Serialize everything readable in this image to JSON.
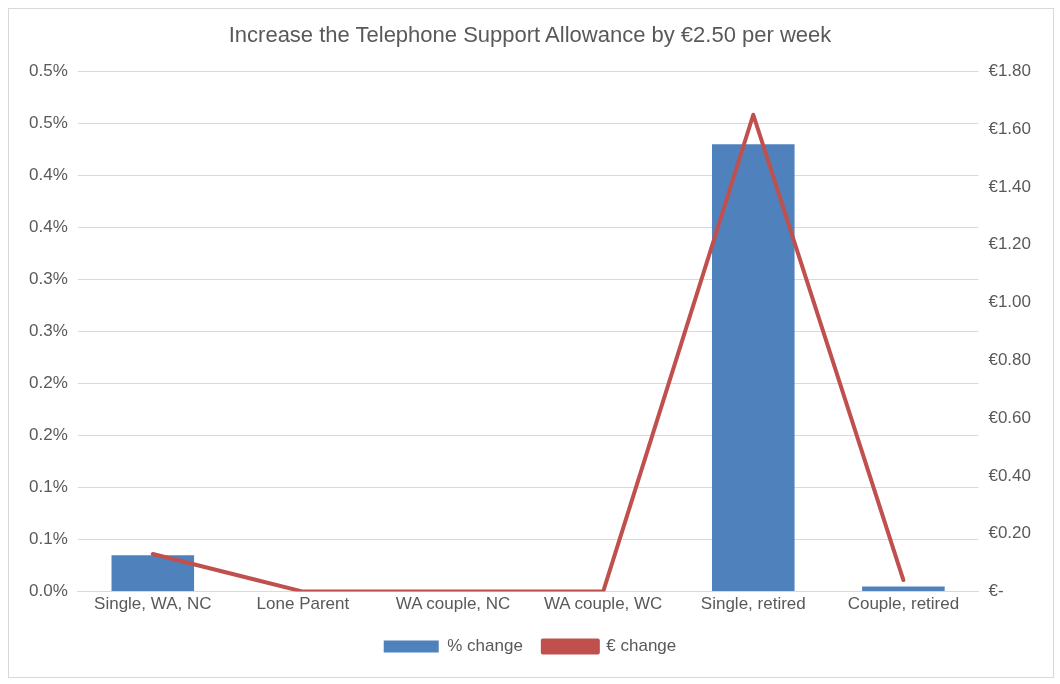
{
  "chart_data": {
    "type": "bar",
    "title": "Increase the Telephone Support Allowance by €2.50 per week",
    "categories": [
      "Single, WA, NC",
      "Lone Parent",
      "WA couple, NC",
      "WA couple, WC",
      "Single, retired",
      "Couple, retired"
    ],
    "series": [
      {
        "name": "% change",
        "color": "#4f81bd",
        "values": [
          0.035,
          0,
          0,
          0,
          0.43,
          0.005
        ]
      },
      {
        "name": "€ change",
        "type": "line",
        "axis": "y2",
        "color": "#c0504d",
        "values": [
          0.13,
          0,
          0,
          0,
          1.65,
          0.04
        ]
      }
    ],
    "ylim": [
      0,
      0.5
    ],
    "yticks": [
      {
        "value": 0,
        "label": "0.0%"
      },
      {
        "value": 0.05,
        "label": "0.1%"
      },
      {
        "value": 0.1,
        "label": "0.1%"
      },
      {
        "value": 0.15,
        "label": "0.2%"
      },
      {
        "value": 0.2,
        "label": "0.2%"
      },
      {
        "value": 0.25,
        "label": "0.3%"
      },
      {
        "value": 0.3,
        "label": "0.3%"
      },
      {
        "value": 0.35,
        "label": "0.4%"
      },
      {
        "value": 0.4,
        "label": "0.4%"
      },
      {
        "value": 0.45,
        "label": "0.5%"
      },
      {
        "value": 0.5,
        "label": "0.5%"
      }
    ],
    "y2lim": [
      0,
      1.8
    ],
    "y2ticks": [
      {
        "value": 0,
        "label": "€-"
      },
      {
        "value": 0.2,
        "label": "€0.20"
      },
      {
        "value": 0.4,
        "label": "€0.40"
      },
      {
        "value": 0.6,
        "label": "€0.60"
      },
      {
        "value": 0.8,
        "label": "€0.80"
      },
      {
        "value": 1,
        "label": "€1.00"
      },
      {
        "value": 1.2,
        "label": "€1.20"
      },
      {
        "value": 1.4,
        "label": "€1.40"
      },
      {
        "value": 1.6,
        "label": "€1.60"
      },
      {
        "value": 1.8,
        "label": "€1.80"
      }
    ],
    "grid": "y",
    "legend": "bottom",
    "marker": "none"
  }
}
